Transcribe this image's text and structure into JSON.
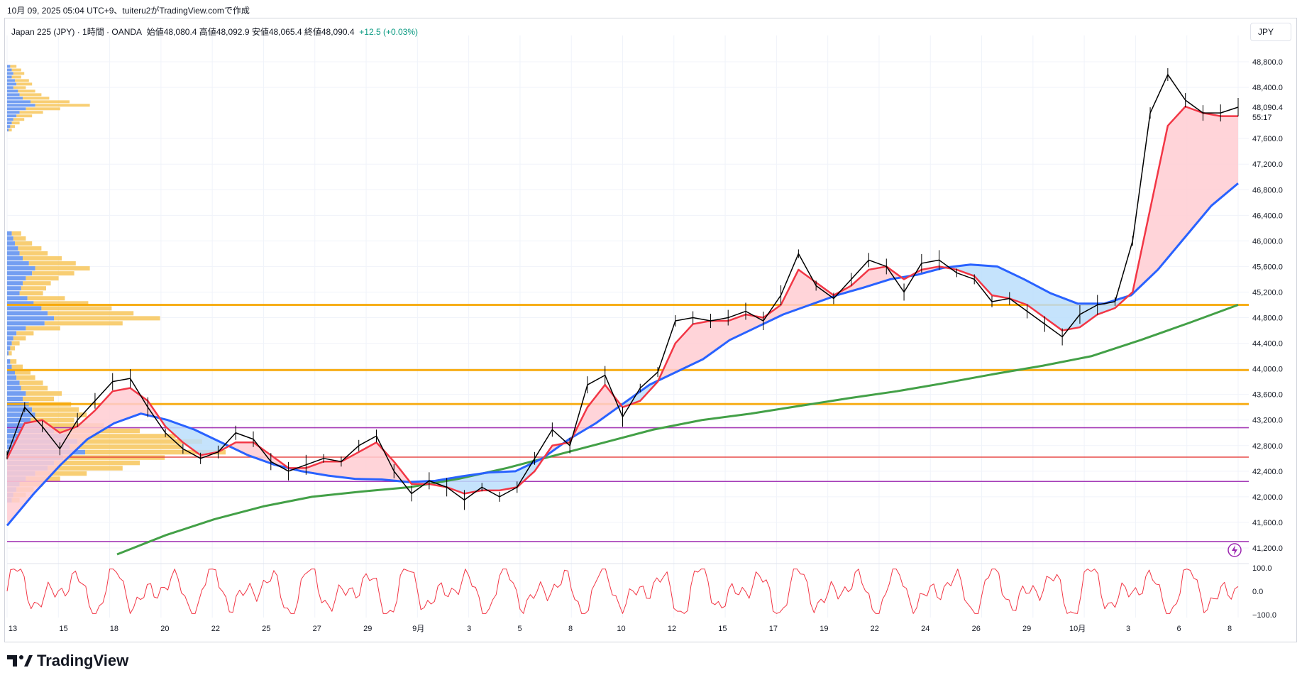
{
  "caption": "10月 09, 2025 05:04 UTC+9、tuiteru2がTradingView.comで作成",
  "legend": {
    "symbol": "Japan 225 (JPY) · 1時間 · OANDA",
    "ohlc": "始値48,080.4 高値48,092.9 安値48,065.4 終値48,090.4",
    "change": "+12.5 (+0.03%)"
  },
  "currency_label": "JPY",
  "brand": {
    "name": "TradingView",
    "logo_icon": "tradingview-logo-icon"
  },
  "colors": {
    "price": "#000000",
    "ema_fast": "#f23645",
    "ema_mid": "#2962ff",
    "ema_slow": "#43a047",
    "cloud_up": "#ffcdd2",
    "cloud_down": "#bbdefb",
    "vp_up": "#5b8def",
    "vp_down": "#f7c65a",
    "resistance": "#f7a600",
    "support_purple": "#9c27b0",
    "support_red": "#e53935",
    "oscillator": "#f23645"
  },
  "chart_data": {
    "type": "line",
    "title": "",
    "ylim": [
      41000,
      49100
    ],
    "y_ticks": [
      "48,800.0",
      "48,400.0",
      "48,090.4",
      "55:17",
      "47,600.0",
      "47,200.0",
      "46,800.0",
      "46,400.0",
      "46,000.0",
      "45,600.0",
      "45,200.0",
      "44,800.0",
      "44,400.0",
      "44,000.0",
      "43,600.0",
      "43,200.0",
      "42,800.0",
      "42,400.0",
      "42,000.0",
      "41,600.0",
      "41,200.0"
    ],
    "x_ticks": [
      "13",
      "15",
      "18",
      "20",
      "22",
      "25",
      "27",
      "29",
      "9月",
      "3",
      "5",
      "8",
      "10",
      "12",
      "15",
      "17",
      "19",
      "22",
      "24",
      "26",
      "29",
      "10月",
      "3",
      "6",
      "8"
    ],
    "last_price": 48090.4,
    "countdown": "55:17",
    "series": [
      {
        "role": "price",
        "values": [
          42650,
          43400,
          43100,
          42750,
          43200,
          43500,
          43800,
          43850,
          43400,
          43000,
          42750,
          42600,
          42700,
          43000,
          42900,
          42550,
          42400,
          42500,
          42600,
          42550,
          42800,
          42950,
          42400,
          42050,
          42250,
          42150,
          41950,
          42150,
          42000,
          42150,
          42600,
          43050,
          42800,
          43750,
          43900,
          43250,
          43700,
          43950,
          44750,
          44800,
          44750,
          44800,
          44900,
          44750,
          45150,
          45800,
          45300,
          45100,
          45400,
          45700,
          45600,
          45200,
          45650,
          45700,
          45500,
          45400,
          45050,
          45100,
          44900,
          44700,
          44500,
          44850,
          45000,
          45050,
          46000,
          48000,
          48600,
          48200,
          48000,
          48000,
          48090
        ]
      },
      {
        "role": "ema_fast",
        "values": [
          42600,
          43150,
          43200,
          43000,
          43100,
          43350,
          43650,
          43700,
          43500,
          43100,
          42850,
          42650,
          42700,
          42850,
          42850,
          42650,
          42450,
          42450,
          42550,
          42550,
          42700,
          42850,
          42550,
          42200,
          42200,
          42150,
          42050,
          42100,
          42100,
          42150,
          42400,
          42800,
          42850,
          43400,
          43750,
          43400,
          43500,
          43800,
          44400,
          44700,
          44750,
          44750,
          44850,
          44800,
          45000,
          45550,
          45350,
          45150,
          45300,
          45550,
          45600,
          45400,
          45550,
          45600,
          45550,
          45450,
          45150,
          45100,
          45000,
          44800,
          44600,
          44650,
          44850,
          44950,
          45200,
          46500,
          47800,
          48100,
          48000,
          47950,
          47950
        ]
      },
      {
        "role": "ema_mid",
        "values": [
          41550,
          42050,
          42500,
          42900,
          43150,
          43300,
          43200,
          43050,
          42850,
          42650,
          42500,
          42400,
          42330,
          42280,
          42270,
          42230,
          42250,
          42320,
          42380,
          42400,
          42600,
          42900,
          43150,
          43450,
          43750,
          43950,
          44150,
          44450,
          44650,
          44850,
          45000,
          45150,
          45270,
          45400,
          45470,
          45580,
          45630,
          45600,
          45400,
          45180,
          45020,
          45020,
          45150,
          45550,
          46050,
          46550,
          46900
        ]
      },
      {
        "role": "ema_slow",
        "values": [
          41100,
          41400,
          41650,
          41850,
          42000,
          42080,
          42150,
          42280,
          42450,
          42650,
          42850,
          43050,
          43200,
          43300,
          43420,
          43540,
          43650,
          43780,
          43920,
          44050,
          44200,
          44450,
          44720,
          45000
        ]
      },
      {
        "role": "oscillator",
        "ylim": [
          -100,
          100
        ],
        "y_ticks": [
          "100.0",
          "0.0",
          "−100.0"
        ]
      }
    ],
    "horizontal_levels": [
      {
        "price": 45000,
        "color": "#f7a600"
      },
      {
        "price": 43980,
        "color": "#f7a600"
      },
      {
        "price": 43450,
        "color": "#f7a600"
      },
      {
        "price": 43080,
        "color": "#9c27b0"
      },
      {
        "price": 42620,
        "color": "#e53935"
      },
      {
        "price": 42240,
        "color": "#9c27b0"
      },
      {
        "price": 41300,
        "color": "#9c27b0"
      }
    ],
    "volume_profile": [
      {
        "price_from": 47700,
        "price_to": 48750,
        "up": [
          2,
          3,
          4,
          3,
          5,
          6,
          4,
          7,
          8,
          10,
          15,
          18,
          12,
          8,
          6,
          4,
          3,
          2,
          1
        ],
        "down": [
          4,
          6,
          7,
          6,
          9,
          10,
          8,
          11,
          14,
          17,
          25,
          35,
          22,
          15,
          10,
          7,
          5,
          3,
          2
        ]
      },
      {
        "price_from": 44200,
        "price_to": 46150,
        "up": [
          3,
          4,
          5,
          7,
          8,
          10,
          14,
          18,
          16,
          12,
          10,
          9,
          8,
          13,
          17,
          22,
          26,
          30,
          24,
          12,
          6,
          4,
          3,
          2,
          1
        ],
        "down": [
          6,
          8,
          11,
          15,
          18,
          25,
          30,
          35,
          27,
          21,
          18,
          16,
          15,
          24,
          35,
          45,
          55,
          68,
          50,
          22,
          11,
          8,
          5,
          3,
          2
        ]
      },
      {
        "price_from": 41900,
        "price_to": 44150,
        "up": [
          2,
          3,
          5,
          6,
          8,
          9,
          12,
          10,
          14,
          16,
          18,
          15,
          22,
          30,
          38,
          45,
          40,
          50,
          36,
          30,
          26,
          18,
          12,
          8,
          6,
          4,
          3
        ],
        "down": [
          4,
          7,
          10,
          12,
          15,
          17,
          23,
          20,
          27,
          30,
          33,
          28,
          40,
          55,
          70,
          80,
          72,
          90,
          65,
          55,
          48,
          33,
          22,
          15,
          11,
          8,
          5
        ]
      }
    ]
  }
}
